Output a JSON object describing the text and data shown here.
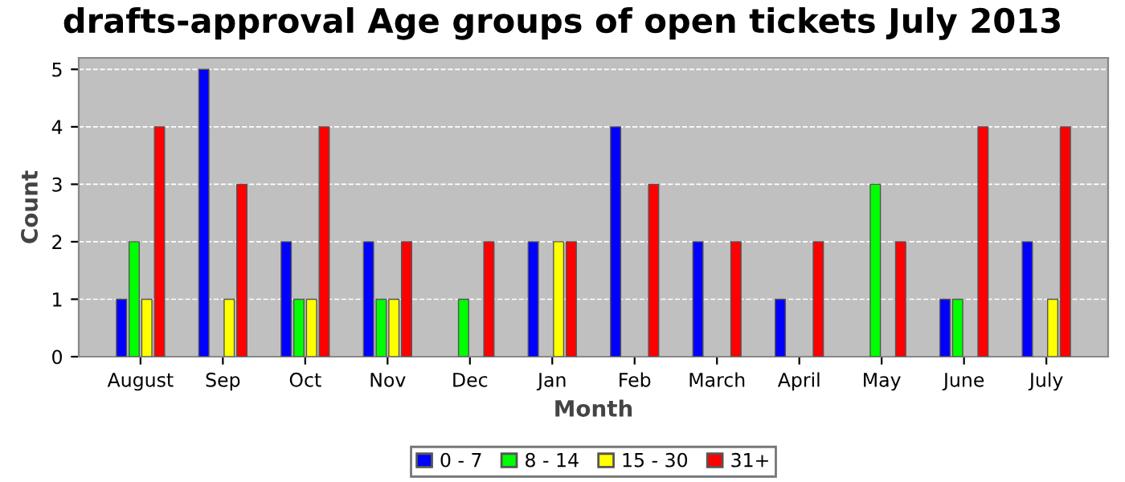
{
  "chart_data": {
    "type": "bar",
    "title": "drafts-approval Age groups of open tickets July 2013",
    "xlabel": "Month",
    "ylabel": "Count",
    "categories": [
      "August",
      "Sep",
      "Oct",
      "Nov",
      "Dec",
      "Jan",
      "Feb",
      "March",
      "April",
      "May",
      "June",
      "July"
    ],
    "series": [
      {
        "name": "0 - 7",
        "color": "#0000ff",
        "values": [
          1,
          5,
          2,
          2,
          0,
          2,
          4,
          2,
          1,
          0,
          1,
          2
        ]
      },
      {
        "name": "8 - 14",
        "color": "#00ff00",
        "values": [
          2,
          0,
          1,
          1,
          1,
          0,
          0,
          0,
          0,
          3,
          1,
          0
        ]
      },
      {
        "name": "15 - 30",
        "color": "#ffff00",
        "values": [
          1,
          1,
          1,
          1,
          0,
          2,
          0,
          0,
          0,
          0,
          0,
          1
        ]
      },
      {
        "name": "31+",
        "color": "#ff0000",
        "values": [
          4,
          3,
          4,
          2,
          2,
          2,
          3,
          2,
          2,
          2,
          4,
          4
        ]
      }
    ],
    "ylim": [
      0,
      5.2
    ],
    "yticks": [
      0,
      1,
      2,
      3,
      4,
      5
    ],
    "grid": "y",
    "legend": "bottom"
  }
}
